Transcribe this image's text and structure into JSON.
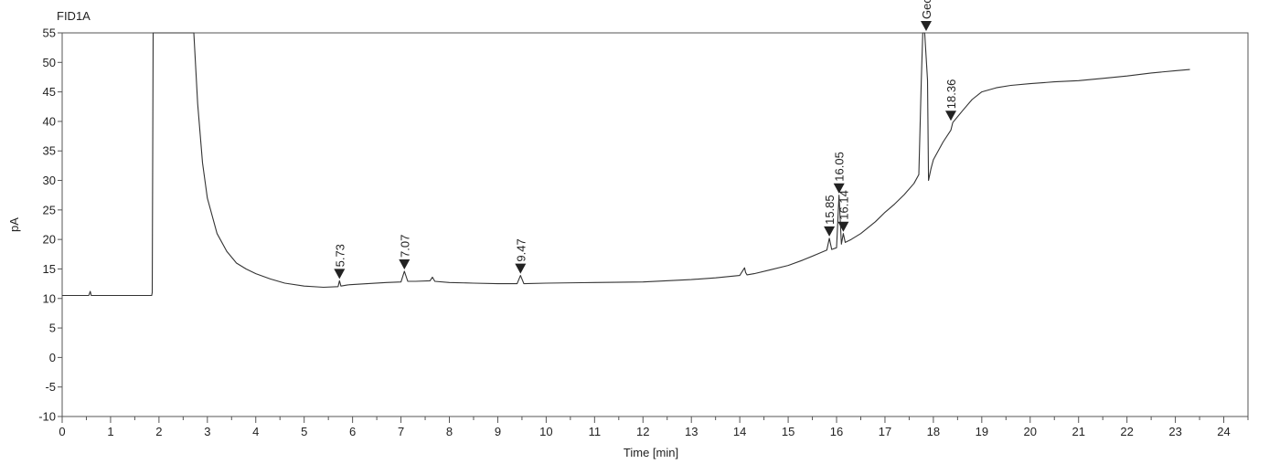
{
  "chart_data": {
    "type": "line",
    "title": "FID1A",
    "xlabel": "Time [min]",
    "ylabel": "pA",
    "xlim": [
      0,
      24.5
    ],
    "ylim": [
      -10,
      55
    ],
    "xticks": [
      "0",
      "1",
      "2",
      "3",
      "4",
      "5",
      "6",
      "7",
      "8",
      "9",
      "10",
      "11",
      "12",
      "13",
      "14",
      "15",
      "16",
      "17",
      "18",
      "19",
      "20",
      "21",
      "22",
      "23",
      "24"
    ],
    "yticks": [
      "-10",
      "-5",
      "0",
      "5",
      "10",
      "15",
      "20",
      "25",
      "30",
      "35",
      "40",
      "45",
      "50",
      "55"
    ],
    "grid": false,
    "series": [
      {
        "x": [
          0,
          0.55,
          0.58,
          0.6,
          0.62,
          1.85,
          1.86,
          1.88,
          1.9,
          2.7,
          2.72,
          2.8,
          2.9,
          3.0,
          3.2,
          3.4,
          3.6,
          3.8,
          4.0,
          4.3,
          4.6,
          5.0,
          5.4,
          5.7,
          5.73,
          5.76,
          5.9,
          6.3,
          6.7,
          7.0,
          7.07,
          7.14,
          7.3,
          7.6,
          7.65,
          7.7,
          8.0,
          8.5,
          9.0,
          9.4,
          9.47,
          9.54,
          10.0,
          11.0,
          12.0,
          13.0,
          13.5,
          14.0,
          14.1,
          14.12,
          14.15,
          14.3,
          14.6,
          15.0,
          15.3,
          15.6,
          15.8,
          15.85,
          15.9,
          16.0,
          16.05,
          16.1,
          16.14,
          16.18,
          16.3,
          16.5,
          16.8,
          17.0,
          17.2,
          17.4,
          17.6,
          17.7,
          17.75,
          17.78,
          17.82,
          17.88,
          17.9,
          17.95,
          18.0,
          18.2,
          18.36,
          18.4,
          18.6,
          18.8,
          19.0,
          19.3,
          19.6,
          20.0,
          20.5,
          21.0,
          21.5,
          22.0,
          22.5,
          23.0,
          23.3
        ],
        "values": [
          10.5,
          10.5,
          11.2,
          10.5,
          10.5,
          10.5,
          11,
          55,
          55,
          55,
          55,
          43,
          33,
          27,
          21,
          18,
          16,
          15,
          14.2,
          13.3,
          12.6,
          12.1,
          11.9,
          12.0,
          13.0,
          12.1,
          12.3,
          12.5,
          12.7,
          12.8,
          14.6,
          12.9,
          12.9,
          13.0,
          13.6,
          12.9,
          12.7,
          12.6,
          12.5,
          12.5,
          13.9,
          12.5,
          12.6,
          12.7,
          12.8,
          13.2,
          13.5,
          13.9,
          15.2,
          14.4,
          14.0,
          14.2,
          14.8,
          15.6,
          16.5,
          17.5,
          18.2,
          20.2,
          18.3,
          18.6,
          27.5,
          19.2,
          21.0,
          19.5,
          20.0,
          21.0,
          23.0,
          24.6,
          26.0,
          27.6,
          29.5,
          31,
          47,
          55,
          55,
          47,
          30,
          32,
          33.5,
          36.5,
          38.5,
          39.8,
          41.8,
          43.7,
          45.0,
          45.7,
          46.1,
          46.4,
          46.7,
          46.9,
          47.3,
          47.7,
          48.2,
          48.6,
          48.8
        ]
      }
    ],
    "peaks": [
      {
        "label": "5.73",
        "x": 5.73,
        "y": 13.0
      },
      {
        "label": "7.07",
        "x": 7.07,
        "y": 14.6
      },
      {
        "label": "9.47",
        "x": 9.47,
        "y": 13.9
      },
      {
        "label": "15.85",
        "x": 15.85,
        "y": 20.2
      },
      {
        "label": "16.05",
        "x": 16.05,
        "y": 27.5
      },
      {
        "label": "16.14",
        "x": 16.14,
        "y": 21.0
      },
      {
        "label": "Geosmin",
        "x": 17.85,
        "y": 55.0
      },
      {
        "label": "18.36",
        "x": 18.36,
        "y": 39.8
      }
    ]
  }
}
